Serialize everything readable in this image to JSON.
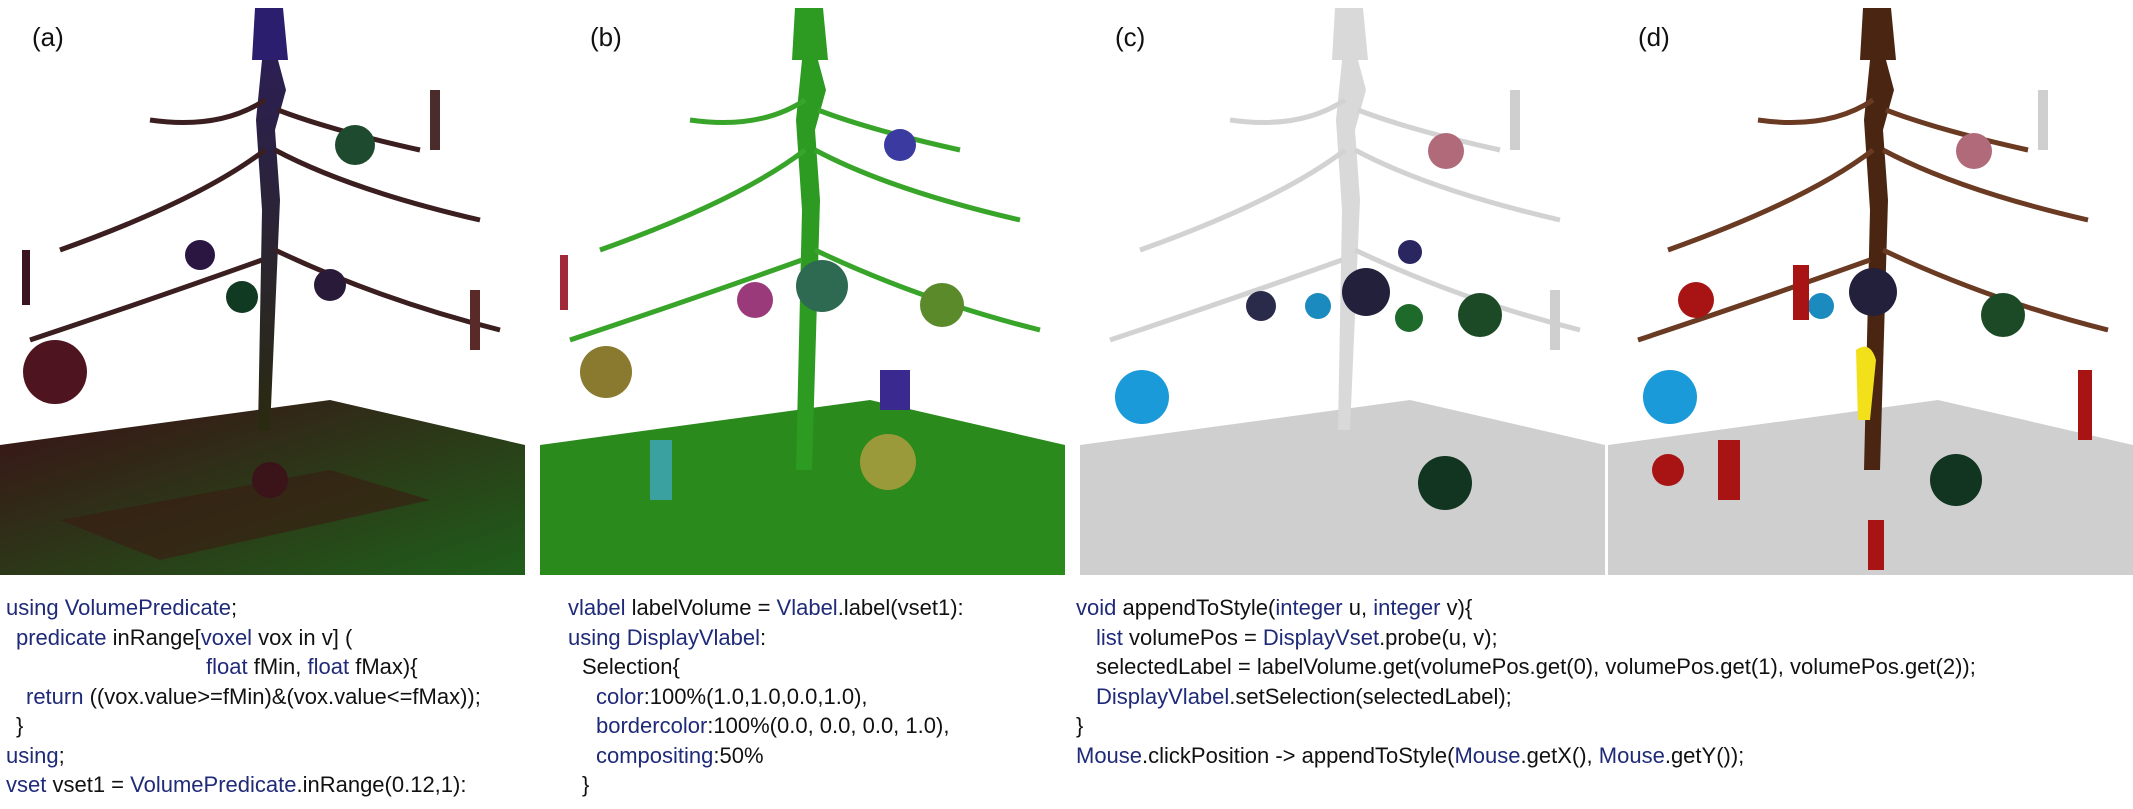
{
  "panels": [
    {
      "label": "(a)",
      "name": "raw-volume-render"
    },
    {
      "label": "(b)",
      "name": "labeled-volume-render"
    },
    {
      "label": "(c)",
      "name": "grey-with-selection-render"
    },
    {
      "label": "(d)",
      "name": "selection-highlight-render"
    }
  ],
  "code_a": [
    {
      "indent": 0,
      "parts": [
        [
          "kw",
          "using VolumePredicate"
        ],
        [
          "t",
          ";"
        ]
      ]
    },
    {
      "indent": 1,
      "parts": [
        [
          "kw",
          "predicate"
        ],
        [
          "t",
          " inRange["
        ],
        [
          "kw",
          "voxel"
        ],
        [
          "t",
          " vox in v] ("
        ]
      ]
    },
    {
      "indent": 20,
      "parts": [
        [
          "kw",
          "float"
        ],
        [
          "t",
          " fMin, "
        ],
        [
          "kw",
          "float"
        ],
        [
          "t",
          " fMax){"
        ]
      ]
    },
    {
      "indent": 2,
      "parts": [
        [
          "kw",
          "return"
        ],
        [
          "t",
          " ((vox.value>=fMin)&(vox.value<=fMax));"
        ]
      ]
    },
    {
      "indent": 1,
      "parts": [
        [
          "t",
          "}"
        ]
      ]
    },
    {
      "indent": 0,
      "parts": [
        [
          "kw",
          "using"
        ],
        [
          "t",
          ";"
        ]
      ]
    },
    {
      "indent": 0,
      "parts": [
        [
          "kw",
          "vset"
        ],
        [
          "t",
          " vset1 = "
        ],
        [
          "kw",
          "VolumePredicate"
        ],
        [
          "t",
          ".inRange(0.12,1):"
        ]
      ]
    }
  ],
  "code_b": [
    {
      "indent": 0,
      "parts": [
        [
          "kw",
          "vlabel"
        ],
        [
          "t",
          " labelVolume = "
        ],
        [
          "kw",
          "Vlabel"
        ],
        [
          "t",
          ".label(vset1):"
        ]
      ]
    },
    {
      "indent": 0,
      "parts": [
        [
          "kw",
          "using DisplayVlabel"
        ],
        [
          "t",
          ":"
        ]
      ]
    },
    {
      "indent": 1,
      "parts": [
        [
          "t",
          "Selection{"
        ]
      ]
    },
    {
      "indent": 2,
      "parts": [
        [
          "kw",
          "color"
        ],
        [
          "t",
          ":100%(1.0,1.0,0.0,1.0),"
        ]
      ]
    },
    {
      "indent": 2,
      "parts": [
        [
          "kw",
          "bordercolor"
        ],
        [
          "t",
          ":100%(0.0, 0.0, 0.0, 1.0),"
        ]
      ]
    },
    {
      "indent": 2,
      "parts": [
        [
          "kw",
          "compositing"
        ],
        [
          "t",
          ":50%"
        ]
      ]
    },
    {
      "indent": 1,
      "parts": [
        [
          "t",
          "}"
        ]
      ]
    }
  ],
  "code_cd": [
    {
      "indent": 0,
      "parts": [
        [
          "kw",
          "void"
        ],
        [
          "t",
          " appendToStyle("
        ],
        [
          "kw",
          "integer"
        ],
        [
          "t",
          " u, "
        ],
        [
          "kw",
          "integer"
        ],
        [
          "t",
          " v){"
        ]
      ]
    },
    {
      "indent": 1,
      "parts": [
        [
          "kw",
          "list"
        ],
        [
          "t",
          " volumePos = "
        ],
        [
          "kw",
          "DisplayVset"
        ],
        [
          "t",
          ".probe(u, v);"
        ]
      ]
    },
    {
      "indent": 1,
      "parts": [
        [
          "t",
          "selectedLabel = labelVolume.get(volumePos.get(0), volumePos.get(1), volumePos.get(2));"
        ]
      ]
    },
    {
      "indent": 1,
      "parts": [
        [
          "kw",
          "DisplayVlabel"
        ],
        [
          "t",
          ".setSelection(selectedLabel);"
        ]
      ]
    },
    {
      "indent": 0,
      "parts": [
        [
          "t",
          "}"
        ]
      ]
    },
    {
      "indent": 0,
      "parts": [
        [
          "kw",
          "Mouse"
        ],
        [
          "t",
          ".clickPosition -> appendToStyle("
        ],
        [
          "kw",
          "Mouse"
        ],
        [
          "t",
          ".getX(), "
        ],
        [
          "kw",
          "Mouse"
        ],
        [
          "t",
          ".getY());"
        ]
      ]
    }
  ],
  "colors": {
    "keyword": "#1f2a78",
    "text": "#111111",
    "panel_b_trunk": "#2d8f1e",
    "panel_d_trunk": "#4a2612",
    "selection": "#f2e01a",
    "ornament_red": "#a81414"
  }
}
